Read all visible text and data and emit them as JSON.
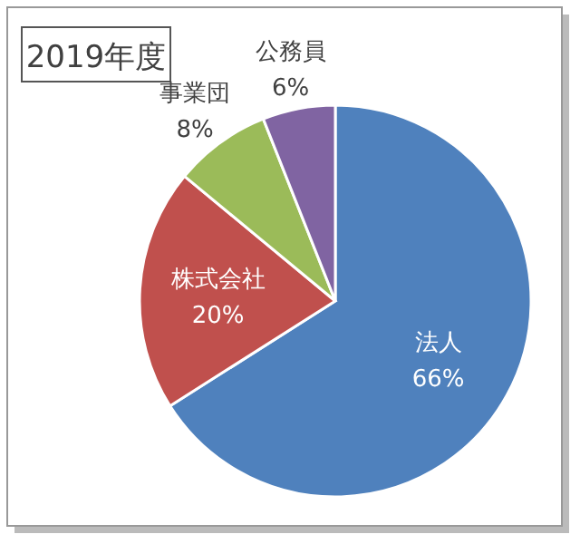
{
  "chart_data": {
    "type": "pie",
    "title": "2019年度",
    "categories": [
      "法人",
      "株式会社",
      "事業団",
      "公務員"
    ],
    "values": [
      66,
      20,
      8,
      6
    ],
    "value_labels": [
      "66%",
      "20%",
      "8%",
      "6%"
    ],
    "colors": [
      "#4f81bd",
      "#c0504d",
      "#9bbb59",
      "#8064a2"
    ]
  }
}
